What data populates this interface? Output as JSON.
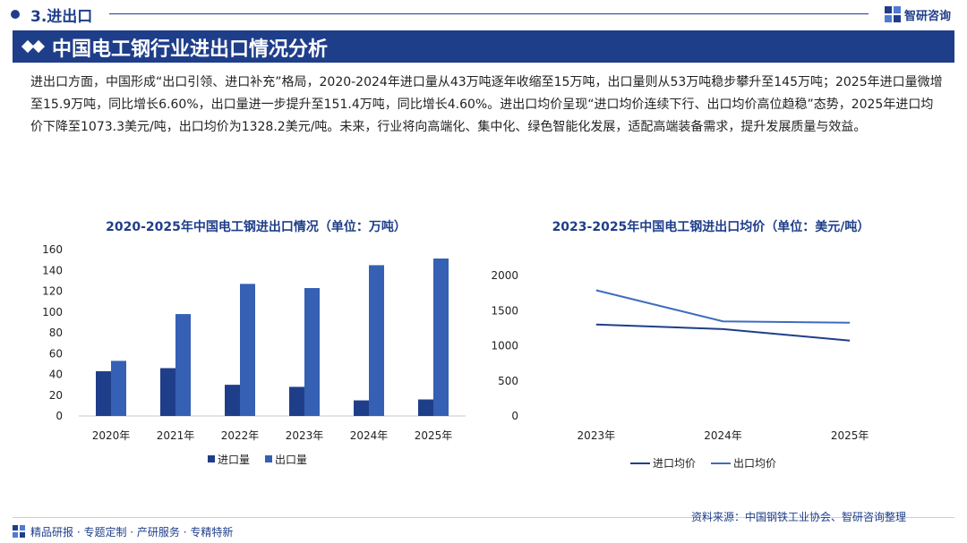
{
  "header": {
    "section_title": "3.进出口",
    "logo_text": "智研咨询",
    "banner_title": "中国电工钢行业进出口情况分析"
  },
  "body_text": "进出口方面，中国形成“出口引领、进口补充”格局，2020-2024年进口量从43万吨逐年收缩至15万吨，出口量则从53万吨稳步攀升至145万吨；2025年进口量微增至15.9万吨，同比增长6.60%，出口量进一步提升至151.4万吨，同比增长4.60%。进出口均价呈现“进口均价连续下行、出口均价高位趋稳”态势，2025年进口均价下降至1073.3美元/吨，出口均价为1328.2美元/吨。未来，行业将向高端化、集中化、绿色智能化发展，适配高端装备需求，提升发展质量与效益。",
  "chart_data": [
    {
      "type": "bar",
      "title": "2020-2025年中国电工钢进出口情况（单位：万吨）",
      "categories": [
        "2020年",
        "2021年",
        "2022年",
        "2023年",
        "2024年",
        "2025年"
      ],
      "series": [
        {
          "name": "进口量",
          "values": [
            43,
            46,
            30,
            28,
            15,
            15.9
          ],
          "color": "#1f3e8a"
        },
        {
          "name": "出口量",
          "values": [
            53,
            98,
            127,
            123,
            145,
            151.4
          ],
          "color": "#3560b3"
        }
      ],
      "yticks": [
        "0",
        "20",
        "40",
        "60",
        "80",
        "100",
        "120",
        "140",
        "160"
      ],
      "ylim": [
        0,
        160
      ],
      "legend_position": "bottom",
      "grid": false
    },
    {
      "type": "line",
      "title": "2023-2025年中国电工钢进出口均价（单位：美元/吨）",
      "categories": [
        "2023年",
        "2024年",
        "2025年"
      ],
      "series": [
        {
          "name": "进口均价",
          "values": [
            1303,
            1237,
            1073.3
          ],
          "color": "#1f3e8a"
        },
        {
          "name": "出口均价",
          "values": [
            1790,
            1347,
            1328.2
          ],
          "color": "#3f6cc0"
        }
      ],
      "yticks": [
        "0",
        "500",
        "1000",
        "1500",
        "2000"
      ],
      "ylim": [
        0,
        2000
      ],
      "legend_position": "bottom",
      "grid": false
    }
  ],
  "footer": {
    "tagline": "精品研报 · 专题定制 · 产研服务 · 专精特新",
    "source": "资料来源：中国钢铁工业协会、智研咨询整理"
  }
}
